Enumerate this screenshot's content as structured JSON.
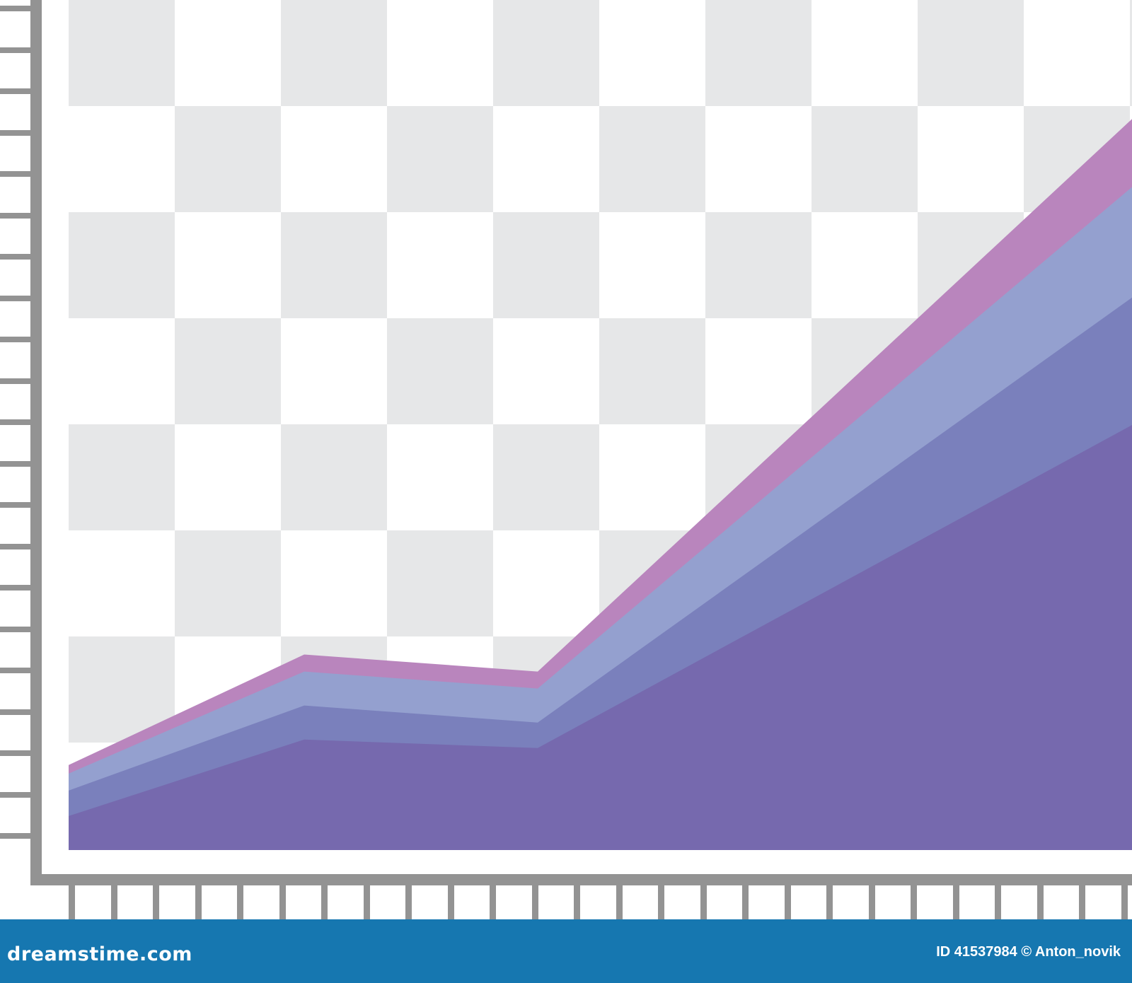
{
  "chart_data": {
    "type": "area",
    "stacked": true,
    "x": [
      0,
      1,
      2,
      3
    ],
    "ylim": [
      0,
      100
    ],
    "grid": true,
    "series": [
      {
        "values": [
          4,
          13,
          12,
          50
        ],
        "color": "#7669ae"
      },
      {
        "values": [
          3,
          4,
          3,
          15
        ],
        "color": "#7a80bc"
      },
      {
        "values": [
          2,
          4,
          4,
          13
        ],
        "color": "#94a0cf"
      },
      {
        "values": [
          1,
          2,
          2,
          8
        ],
        "color": "#b985bd"
      }
    ],
    "axis_color": "#939393",
    "checker_color": "#e6e7e8"
  },
  "footer": {
    "brand": "dreamstime.com",
    "credit": "ID 41537984 © Anton_novik",
    "background": "#1677b0"
  }
}
